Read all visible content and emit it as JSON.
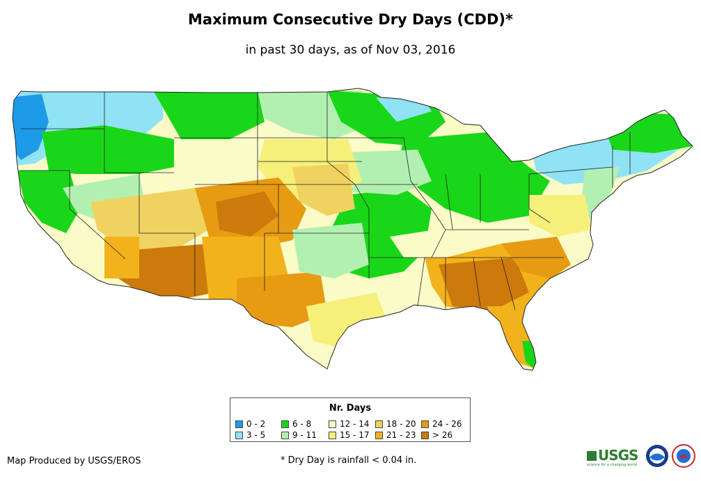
{
  "title": "Maximum Consecutive Dry Days (CDD)*",
  "subtitle": "in past 30 days, as of Nov 03, 2016",
  "legend": {
    "title": "Nr. Days",
    "items": [
      {
        "label": "0 - 2",
        "color": "#1e9be8"
      },
      {
        "label": "3 - 5",
        "color": "#8fe3f5"
      },
      {
        "label": "6 - 8",
        "color": "#19d619"
      },
      {
        "label": "9 - 11",
        "color": "#b2f0b2"
      },
      {
        "label": "12 - 14",
        "color": "#fbfbc8"
      },
      {
        "label": "15 - 17",
        "color": "#f5f07a"
      },
      {
        "label": "18 - 20",
        "color": "#f0d260"
      },
      {
        "label": "21 - 23",
        "color": "#f2b21c"
      },
      {
        "label": "24 - 26",
        "color": "#e79b12"
      },
      {
        "label": "> 26",
        "color": "#cc7a0c"
      }
    ]
  },
  "credit": "Map Produced by USGS/EROS",
  "footnote": "* Dry Day is rainfall < 0.04 in.",
  "logos": {
    "usgs": "USGS",
    "usgs_tagline": "science for a changing world"
  }
}
